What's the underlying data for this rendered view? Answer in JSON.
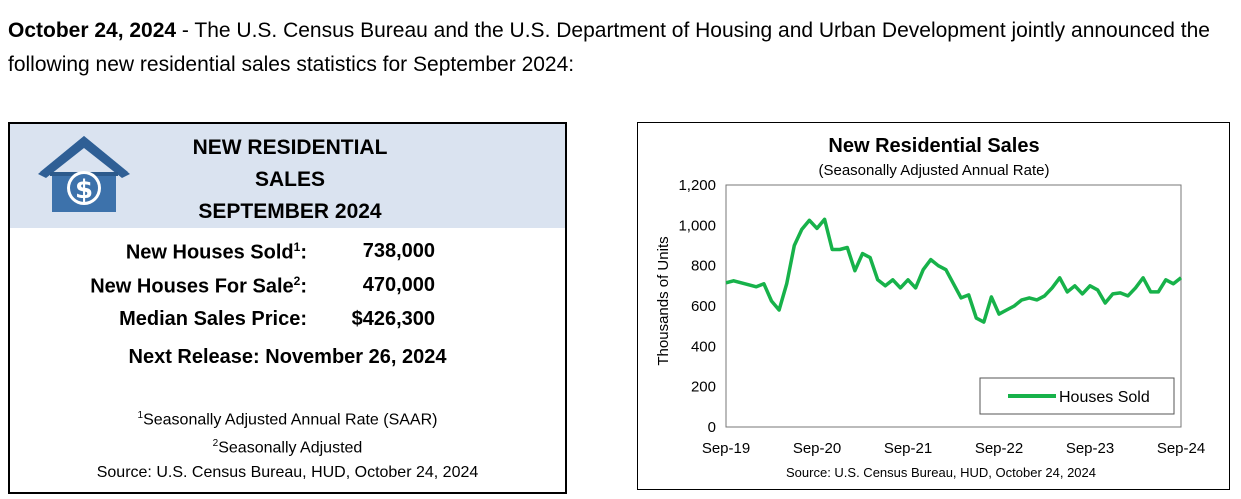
{
  "intro": {
    "date": "October 24, 2024",
    "text": " - The U.S. Census Bureau and the U.S. Department of Housing and Urban Development jointly announced the following new residential sales statistics for September 2024:"
  },
  "summary": {
    "title_line1": "NEW RESIDENTIAL",
    "title_line2": "SALES",
    "title_line3": "SEPTEMBER 2024",
    "icon": "house-dollar-icon",
    "stats": [
      {
        "label": "New Houses Sold",
        "sup": "1",
        "value": "738,000"
      },
      {
        "label": "New Houses For Sale",
        "sup": "2",
        "value": "470,000"
      },
      {
        "label": "Median Sales Price:",
        "sup": "",
        "value": "$426,300"
      }
    ],
    "next_release": "Next Release:  November 26, 2024",
    "note1_sup": "1",
    "note1": "Seasonally Adjusted Annual Rate (SAAR)",
    "note2_sup": "2",
    "note2": "Seasonally Adjusted",
    "source": "Source:  U.S. Census Bureau, HUD, October 24, 2024"
  },
  "chart_data": {
    "type": "line",
    "title": "New Residential Sales",
    "subtitle": "(Seasonally Adjusted Annual Rate)",
    "ylabel": "Thousands of Units",
    "xlabel": "",
    "ylim": [
      0,
      1200
    ],
    "yticks": [
      "0",
      "200",
      "400",
      "600",
      "800",
      "1,000",
      "1,200"
    ],
    "xticks": [
      "Sep-19",
      "Sep-20",
      "Sep-21",
      "Sep-22",
      "Sep-23",
      "Sep-24"
    ],
    "legend": "bottom-right",
    "grid": false,
    "line_color": "#17b24a",
    "source": "Source:  U.S. Census Bureau, HUD, October 24, 2024",
    "series": [
      {
        "name": "Houses Sold",
        "values": [
          715,
          725,
          715,
          705,
          695,
          710,
          625,
          580,
          710,
          900,
          980,
          1025,
          985,
          1030,
          880,
          880,
          890,
          775,
          860,
          840,
          730,
          700,
          730,
          690,
          730,
          690,
          780,
          830,
          800,
          780,
          710,
          640,
          655,
          540,
          520,
          645,
          560,
          580,
          600,
          630,
          640,
          630,
          650,
          690,
          740,
          670,
          700,
          660,
          700,
          680,
          615,
          660,
          665,
          650,
          690,
          740,
          670,
          670,
          730,
          710,
          740
        ]
      }
    ]
  }
}
